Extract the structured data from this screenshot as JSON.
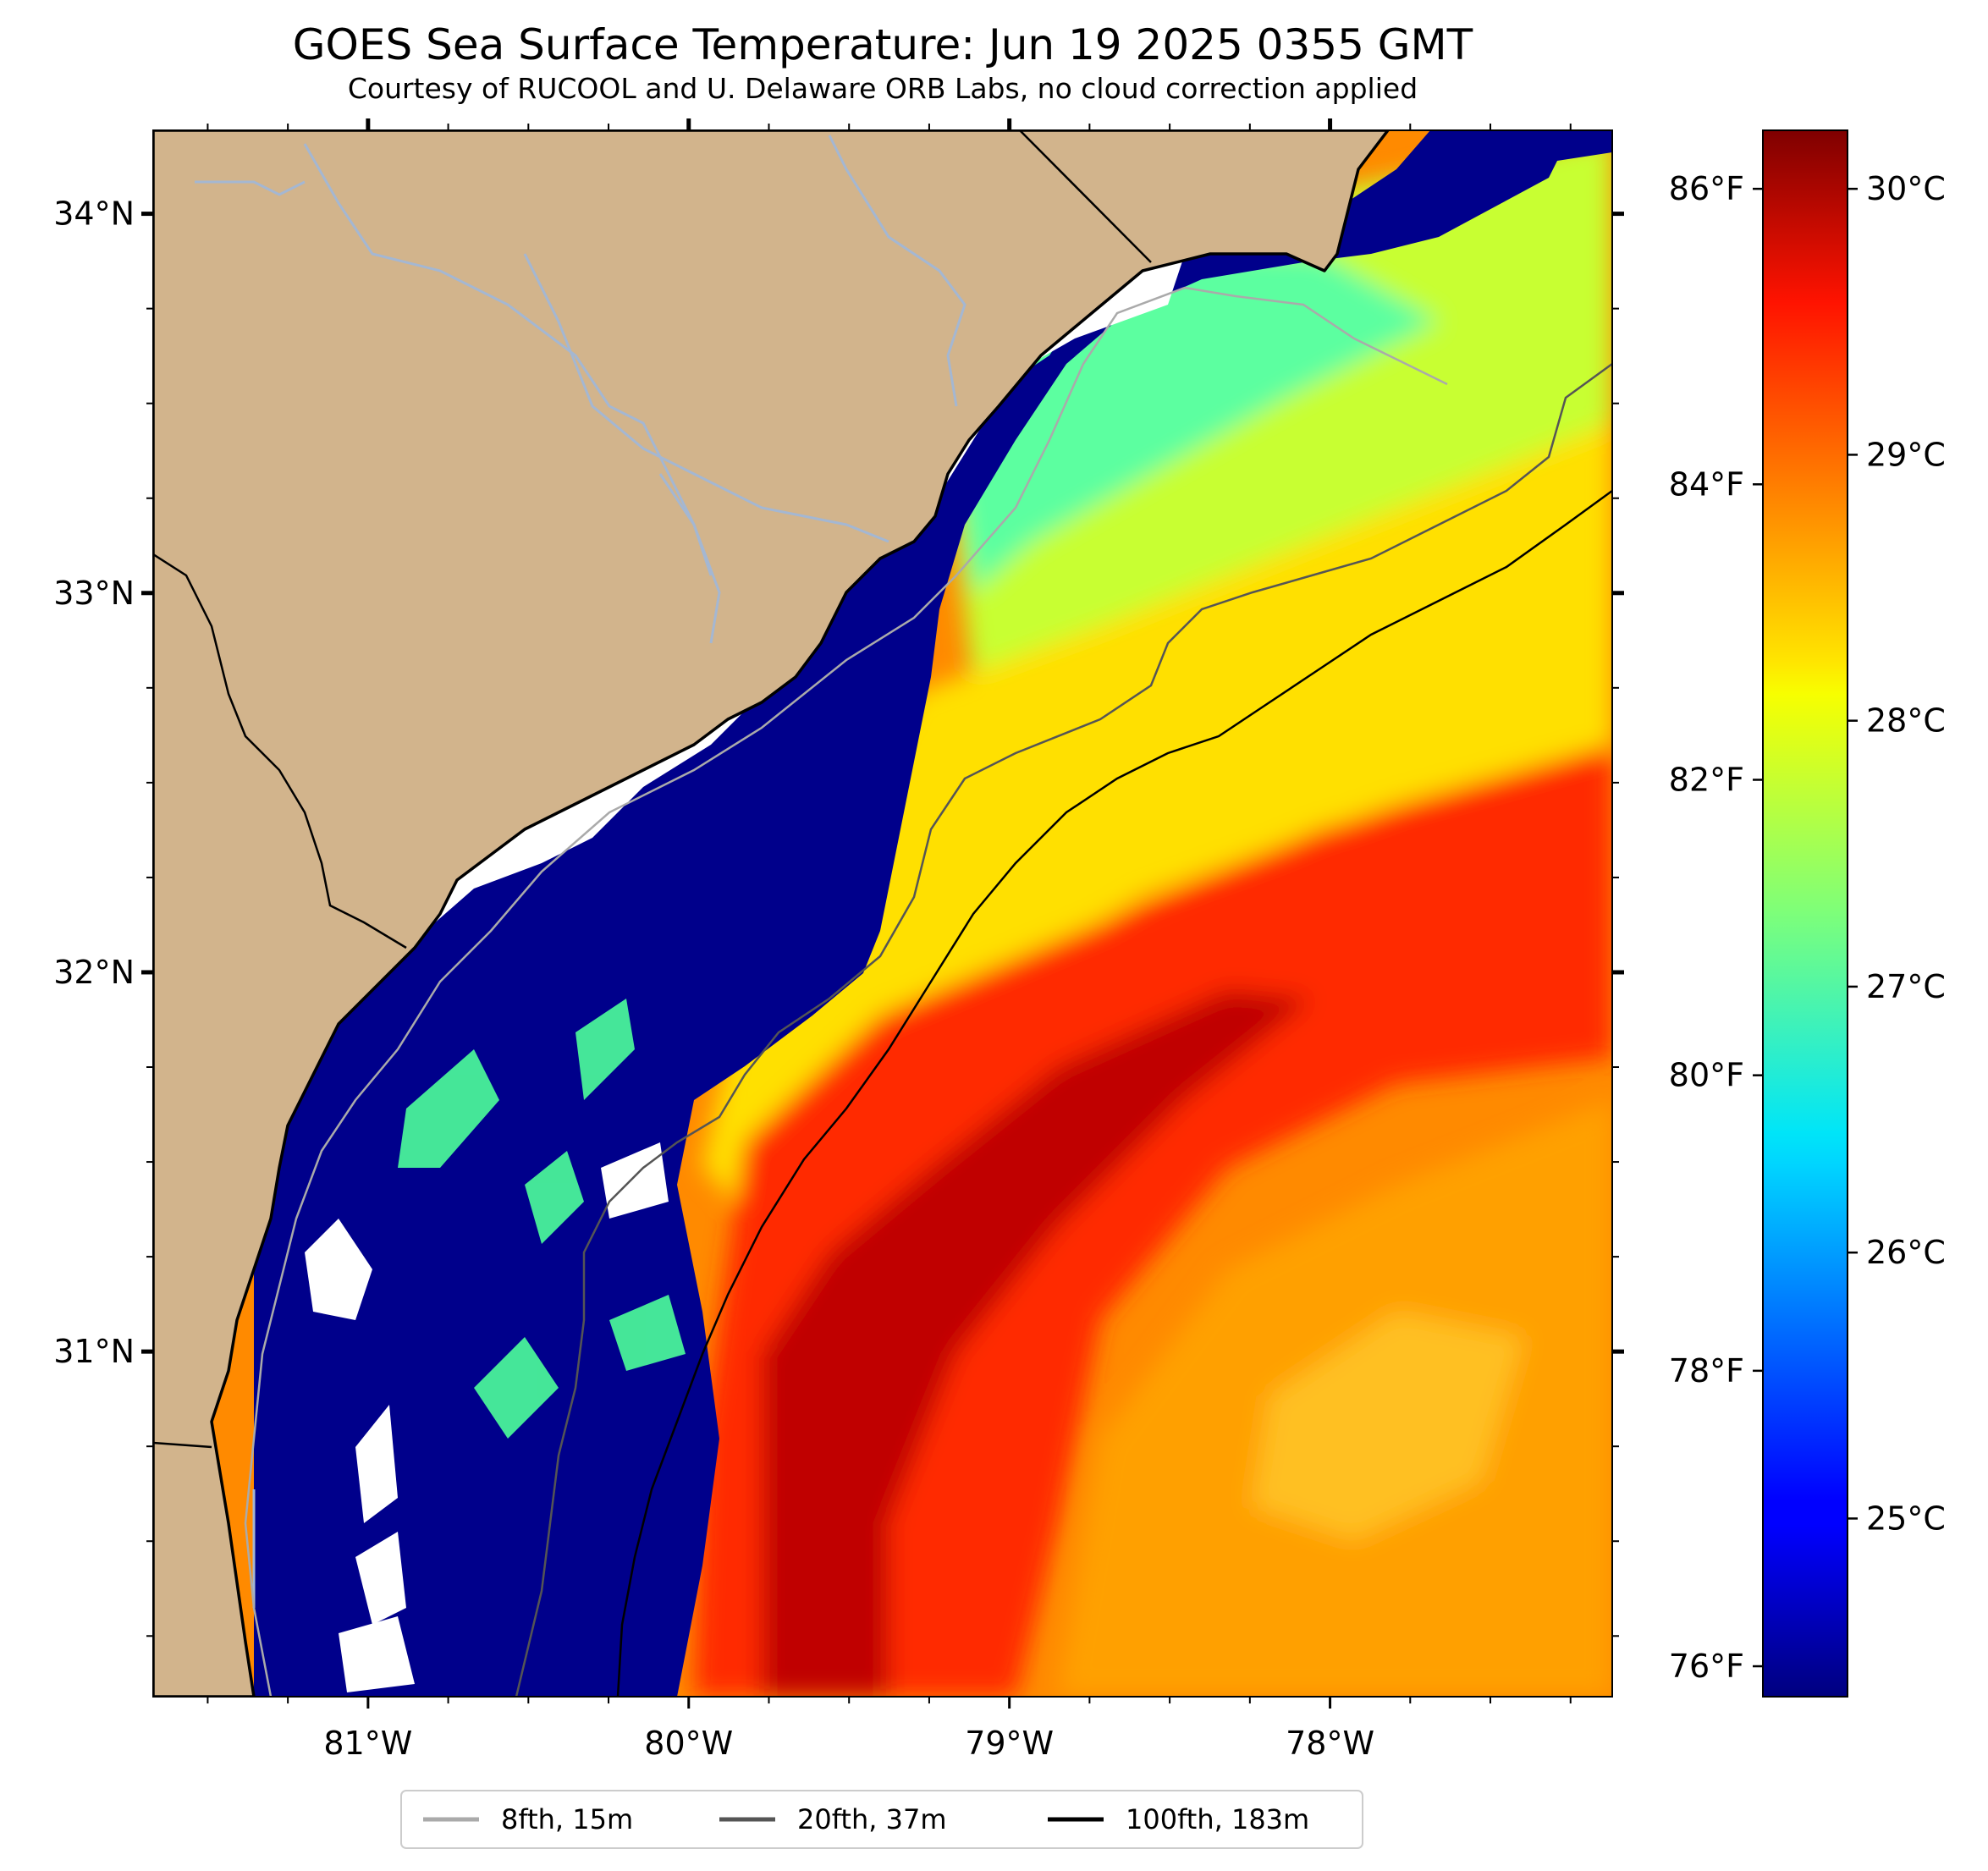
{
  "title": "GOES Sea Surface Temperature: Jun 19 2025 0355 GMT",
  "subtitle": "Courtesy of RUCOOL and U. Delaware ORB Labs, no cloud correction applied",
  "map": {
    "lon_range": [
      -81.67,
      -77.12
    ],
    "lat_range": [
      30.09,
      34.22
    ],
    "lon_ticks": [
      {
        "value": -81,
        "label": "81°W"
      },
      {
        "value": -80,
        "label": "80°W"
      },
      {
        "value": -79,
        "label": "79°W"
      },
      {
        "value": -78,
        "label": "78°W"
      }
    ],
    "lat_ticks": [
      {
        "value": 34,
        "label": "34°N"
      },
      {
        "value": 33,
        "label": "33°N"
      },
      {
        "value": 32,
        "label": "32°N"
      },
      {
        "value": 31,
        "label": "31°N"
      }
    ],
    "colors": {
      "land": "#d2b48c",
      "ocean_cold": "#00008b",
      "cloud": "#ffffff",
      "coast": "#000000",
      "rivers": "#a4b7d2"
    }
  },
  "colorbar": {
    "colormap": "jet",
    "range_c": [
      24.33,
      30.22
    ],
    "celsius_ticks": [
      {
        "value": 30,
        "label": "30°C"
      },
      {
        "value": 29,
        "label": "29°C"
      },
      {
        "value": 28,
        "label": "28°C"
      },
      {
        "value": 27,
        "label": "27°C"
      },
      {
        "value": 26,
        "label": "26°C"
      },
      {
        "value": 25,
        "label": "25°C"
      }
    ],
    "fahrenheit_ticks": [
      {
        "value": 86,
        "label": "86°F"
      },
      {
        "value": 84,
        "label": "84°F"
      },
      {
        "value": 82,
        "label": "82°F"
      },
      {
        "value": 80,
        "label": "80°F"
      },
      {
        "value": 78,
        "label": "78°F"
      },
      {
        "value": 76,
        "label": "76°F"
      }
    ]
  },
  "legend": {
    "entries": [
      {
        "label": "8fth, 15m",
        "color": "#aaaaaa"
      },
      {
        "label": "20fth, 37m",
        "color": "#555555"
      },
      {
        "label": "100fth, 183m",
        "color": "#000000"
      }
    ]
  }
}
